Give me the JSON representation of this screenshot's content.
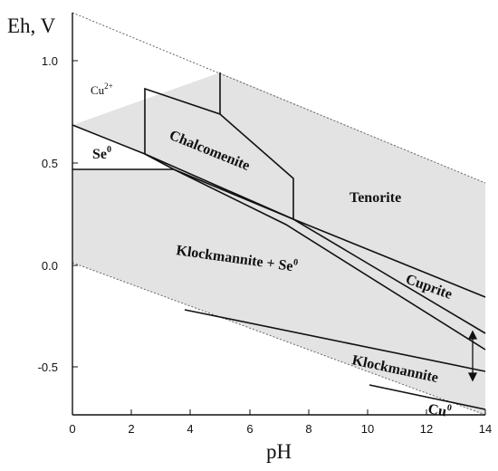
{
  "diagram": {
    "y_axis_label": "Eh, V",
    "x_axis_label": "pH",
    "x_ticks": [
      "0",
      "2",
      "4",
      "6",
      "8",
      "10",
      "12",
      "14"
    ],
    "y_ticks": [
      "1.0",
      "0.5",
      "0.0",
      "-0.5"
    ],
    "regions": {
      "cu2plus": {
        "base": "Cu",
        "sup": "2+"
      },
      "se0": {
        "base": "Se",
        "sup": "0"
      },
      "chalcomenite": "Chalcomenite",
      "tenorite": "Tenorite",
      "klockmannite_se0": {
        "base": "Klockmannite + Se",
        "sup": "0"
      },
      "cuprite": "Cuprite",
      "klockmannite": "Klockmannite",
      "cu0": {
        "base": "Cu",
        "sup": "0"
      }
    },
    "colors": {
      "region_fill": "#e3e3e3",
      "line": "#111111",
      "water_line": "#666666"
    }
  }
}
